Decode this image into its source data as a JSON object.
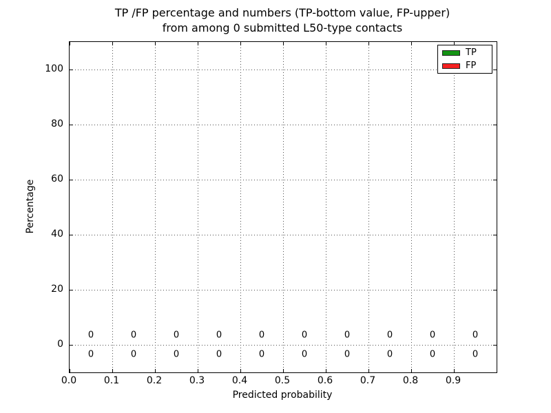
{
  "chart_data": {
    "type": "bar",
    "title": "TP /FP percentage and numbers (TP-bottom value, FP-upper) from among 0 submitted L50-type contacts",
    "title_lines": {
      "line1": "TP /FP percentage and numbers (TP-bottom value, FP-upper)",
      "line2": "from among 0 submitted L50-type contacts"
    },
    "xlabel": "Predicted probability",
    "ylabel": "Percentage",
    "xlim": [
      0.0,
      1.0
    ],
    "ylim": [
      -10,
      110
    ],
    "grid": true,
    "grid_style": "dotted",
    "x_ticks": [
      {
        "value": 0.0,
        "label": "0.0"
      },
      {
        "value": 0.1,
        "label": "0.1"
      },
      {
        "value": 0.2,
        "label": "0.2"
      },
      {
        "value": 0.3,
        "label": "0.3"
      },
      {
        "value": 0.4,
        "label": "0.4"
      },
      {
        "value": 0.5,
        "label": "0.5"
      },
      {
        "value": 0.6,
        "label": "0.6"
      },
      {
        "value": 0.7,
        "label": "0.7"
      },
      {
        "value": 0.8,
        "label": "0.8"
      },
      {
        "value": 0.9,
        "label": "0.9"
      }
    ],
    "y_ticks": [
      {
        "value": 0,
        "label": "0"
      },
      {
        "value": 20,
        "label": "20"
      },
      {
        "value": 40,
        "label": "40"
      },
      {
        "value": 60,
        "label": "60"
      },
      {
        "value": 80,
        "label": "80"
      },
      {
        "value": 100,
        "label": "100"
      }
    ],
    "bin_centers": [
      0.05,
      0.15,
      0.25,
      0.35,
      0.45,
      0.55,
      0.65,
      0.75,
      0.85,
      0.95
    ],
    "series": [
      {
        "name": "TP",
        "color": "#149414",
        "values": [
          0,
          0,
          0,
          0,
          0,
          0,
          0,
          0,
          0,
          0
        ],
        "annotation_row": "below-zero"
      },
      {
        "name": "FP",
        "color": "#f52020",
        "values": [
          0,
          0,
          0,
          0,
          0,
          0,
          0,
          0,
          0,
          0
        ],
        "annotation_row": "above-zero"
      }
    ],
    "legend": {
      "position": "upper right",
      "entries": [
        {
          "label": "TP",
          "color": "#149414"
        },
        {
          "label": "FP",
          "color": "#f52020"
        }
      ]
    }
  }
}
